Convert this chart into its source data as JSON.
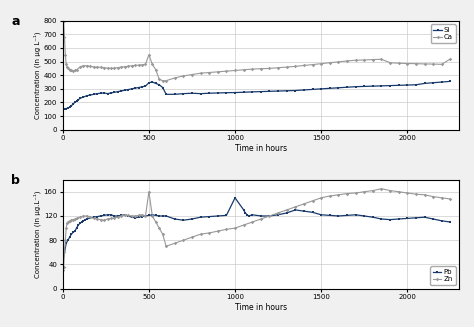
{
  "panel_a": {
    "label": "a",
    "ylabel": "Concentration (in μg L⁻¹)",
    "xlabel": "Time in hours",
    "xlim": [
      0,
      2300
    ],
    "ylim": [
      0,
      800
    ],
    "yticks": [
      0,
      100,
      200,
      300,
      400,
      500,
      600,
      700,
      800
    ],
    "xticks": [
      0,
      500,
      1000,
      1500,
      2000
    ],
    "si_color": "#1a3a6b",
    "ca_color": "#999999",
    "si_label": "Si",
    "ca_label": "Ca",
    "si_x": [
      0,
      10,
      20,
      30,
      40,
      50,
      60,
      70,
      80,
      90,
      100,
      120,
      140,
      160,
      180,
      200,
      220,
      240,
      260,
      280,
      300,
      320,
      340,
      360,
      380,
      400,
      420,
      440,
      460,
      480,
      500,
      520,
      540,
      560,
      580,
      600,
      650,
      700,
      750,
      800,
      850,
      900,
      950,
      1000,
      1050,
      1100,
      1150,
      1200,
      1250,
      1300,
      1350,
      1400,
      1450,
      1500,
      1550,
      1600,
      1650,
      1700,
      1750,
      1800,
      1850,
      1900,
      1950,
      2000,
      2050,
      2100,
      2150,
      2200,
      2250
    ],
    "si_y": [
      150,
      150,
      155,
      160,
      165,
      175,
      190,
      200,
      210,
      220,
      230,
      240,
      250,
      255,
      260,
      265,
      268,
      270,
      265,
      270,
      275,
      280,
      285,
      290,
      295,
      300,
      305,
      310,
      315,
      320,
      345,
      350,
      340,
      330,
      310,
      260,
      260,
      265,
      268,
      265,
      268,
      270,
      272,
      273,
      275,
      278,
      280,
      282,
      284,
      286,
      288,
      292,
      296,
      300,
      304,
      308,
      312,
      316,
      318,
      320,
      322,
      324,
      326,
      328,
      330,
      340,
      345,
      350,
      355
    ],
    "ca_x": [
      0,
      5,
      10,
      15,
      20,
      25,
      30,
      40,
      50,
      60,
      70,
      80,
      100,
      120,
      140,
      160,
      180,
      200,
      220,
      240,
      260,
      280,
      300,
      320,
      340,
      360,
      380,
      400,
      420,
      440,
      460,
      480,
      500,
      520,
      540,
      560,
      580,
      600,
      650,
      700,
      750,
      800,
      850,
      900,
      950,
      1000,
      1050,
      1100,
      1150,
      1200,
      1250,
      1300,
      1350,
      1400,
      1450,
      1500,
      1550,
      1600,
      1650,
      1700,
      1750,
      1800,
      1850,
      1900,
      1950,
      2000,
      2050,
      2100,
      2150,
      2200,
      2250
    ],
    "ca_y": [
      650,
      800,
      680,
      550,
      480,
      460,
      450,
      440,
      435,
      430,
      435,
      440,
      460,
      470,
      470,
      465,
      460,
      460,
      458,
      455,
      452,
      450,
      453,
      456,
      460,
      463,
      466,
      470,
      472,
      474,
      476,
      480,
      550,
      480,
      440,
      370,
      360,
      360,
      380,
      395,
      405,
      415,
      420,
      425,
      430,
      435,
      440,
      445,
      448,
      450,
      455,
      460,
      465,
      472,
      478,
      485,
      492,
      498,
      505,
      510,
      512,
      515,
      517,
      492,
      488,
      486,
      485,
      483,
      482,
      480,
      520
    ]
  },
  "panel_b": {
    "label": "b",
    "ylabel": "Concentration (in μg.L⁻¹)",
    "xlabel": "Time in hours",
    "xlim": [
      0,
      2300
    ],
    "ylim": [
      0,
      180
    ],
    "yticks": [
      0,
      40,
      80,
      120,
      160
    ],
    "xticks": [
      0,
      500,
      1000,
      1500,
      2000
    ],
    "pb_color": "#1a3a6b",
    "zn_color": "#999999",
    "pb_label": "Pb",
    "zn_label": "Zn",
    "pb_x": [
      0,
      10,
      20,
      30,
      40,
      50,
      60,
      70,
      80,
      90,
      100,
      110,
      120,
      130,
      140,
      160,
      180,
      200,
      220,
      240,
      260,
      280,
      300,
      320,
      340,
      360,
      380,
      400,
      420,
      440,
      460,
      480,
      500,
      520,
      540,
      560,
      580,
      600,
      650,
      700,
      750,
      800,
      850,
      900,
      950,
      1000,
      1050,
      1060,
      1070,
      1080,
      1100,
      1150,
      1200,
      1250,
      1300,
      1350,
      1400,
      1450,
      1500,
      1550,
      1600,
      1650,
      1700,
      1750,
      1800,
      1850,
      1900,
      1950,
      2000,
      2050,
      2100,
      2150,
      2200,
      2250
    ],
    "pb_y": [
      45,
      60,
      75,
      80,
      85,
      90,
      93,
      95,
      100,
      105,
      108,
      110,
      112,
      114,
      115,
      117,
      118,
      119,
      120,
      121,
      122,
      122,
      120,
      120,
      121,
      122,
      120,
      118,
      117,
      118,
      119,
      120,
      121,
      122,
      121,
      120,
      120,
      120,
      115,
      113,
      115,
      118,
      119,
      120,
      121,
      150,
      130,
      125,
      122,
      120,
      122,
      120,
      120,
      122,
      125,
      130,
      128,
      126,
      122,
      121,
      120,
      121,
      122,
      120,
      118,
      115,
      114,
      115,
      116,
      117,
      118,
      115,
      112,
      110
    ],
    "zn_x": [
      0,
      5,
      10,
      15,
      20,
      25,
      30,
      40,
      50,
      60,
      70,
      80,
      100,
      120,
      140,
      160,
      180,
      200,
      220,
      240,
      260,
      280,
      300,
      320,
      340,
      360,
      380,
      400,
      420,
      440,
      460,
      480,
      500,
      520,
      540,
      560,
      580,
      600,
      650,
      700,
      750,
      800,
      850,
      900,
      950,
      1000,
      1050,
      1100,
      1150,
      1200,
      1250,
      1300,
      1350,
      1400,
      1450,
      1500,
      1550,
      1600,
      1650,
      1700,
      1750,
      1800,
      1850,
      1900,
      1950,
      2000,
      2050,
      2100,
      2150,
      2200,
      2250
    ],
    "zn_y": [
      30,
      35,
      60,
      80,
      100,
      108,
      110,
      112,
      113,
      114,
      115,
      116,
      118,
      120,
      120,
      118,
      116,
      115,
      114,
      113,
      115,
      116,
      117,
      118,
      120,
      122,
      121,
      120,
      120,
      121,
      122,
      120,
      160,
      120,
      110,
      100,
      90,
      70,
      75,
      80,
      85,
      90,
      92,
      95,
      98,
      100,
      105,
      110,
      115,
      120,
      125,
      130,
      135,
      140,
      145,
      150,
      153,
      155,
      157,
      158,
      160,
      162,
      165,
      162,
      160,
      158,
      156,
      155,
      152,
      150,
      148
    ]
  },
  "figure_bg": "#f0f0f0",
  "axes_bg": "#ffffff",
  "grid_color": "#cccccc"
}
